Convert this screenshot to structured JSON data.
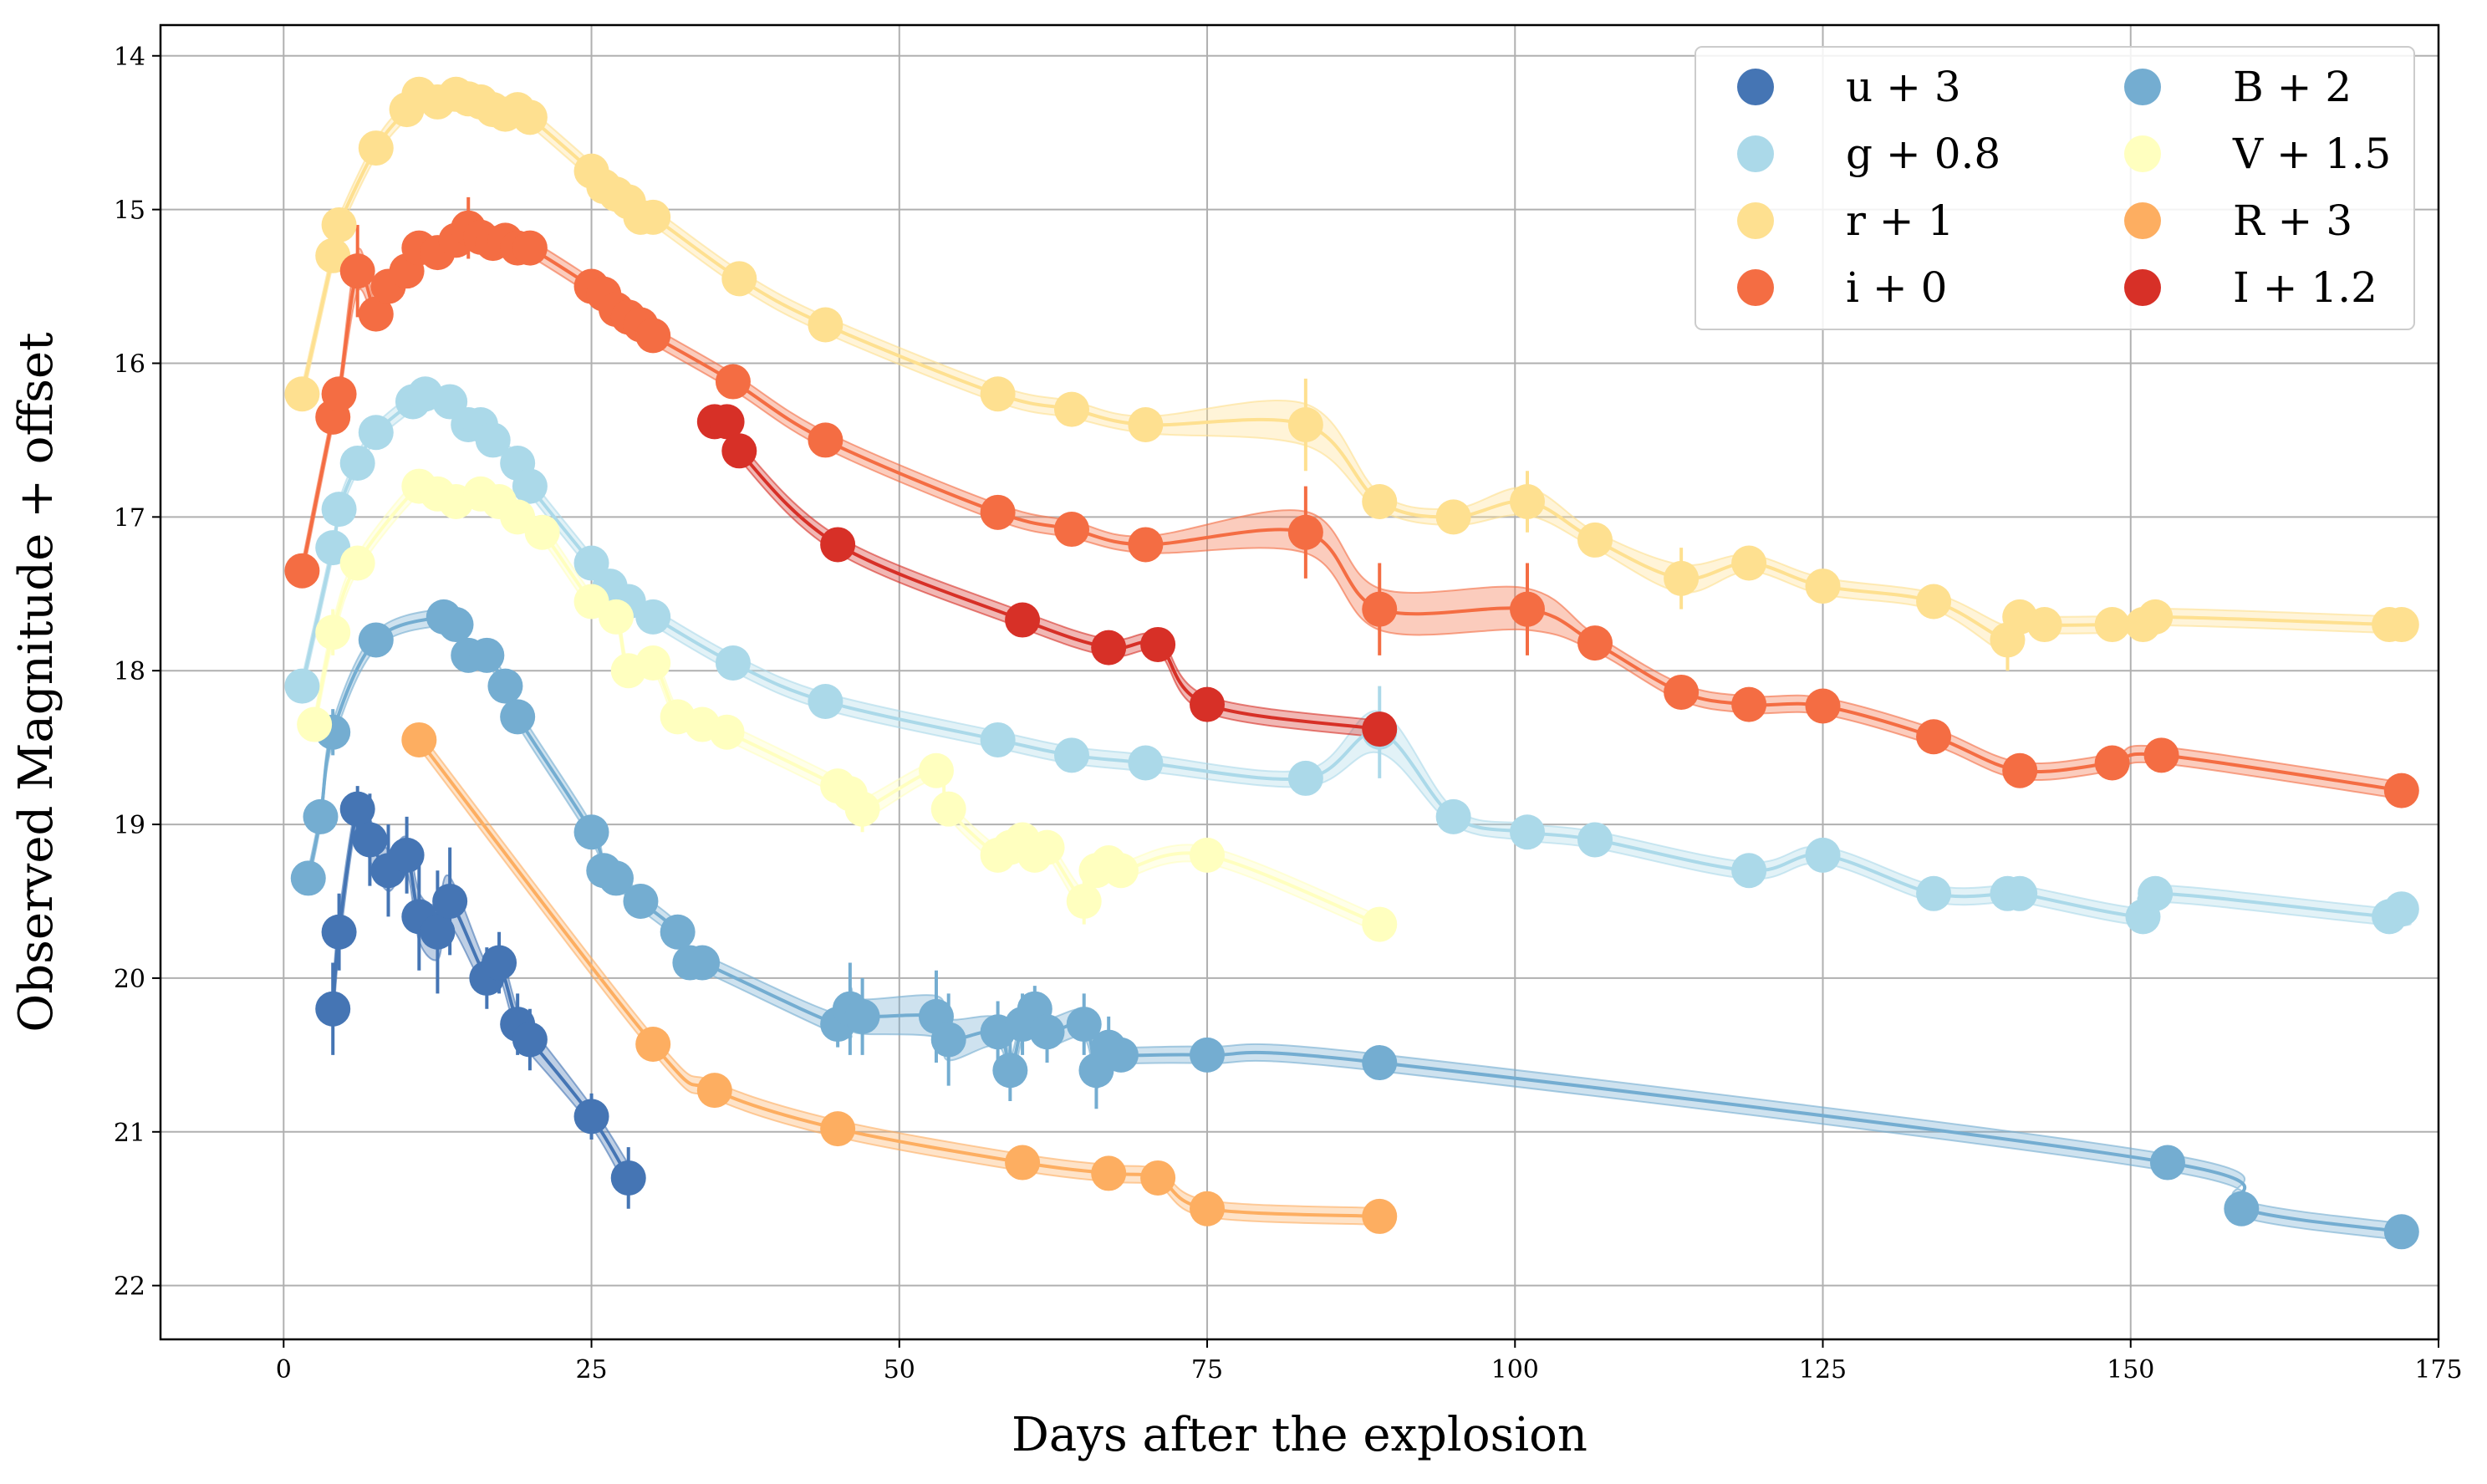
{
  "chart_data": {
    "type": "scatter",
    "title": "",
    "xlabel": "Days after the explosion",
    "ylabel": "Observed Magnitude + offset",
    "xlim": [
      -10,
      175
    ],
    "ylim": [
      22.35,
      13.8
    ],
    "y_inverted": true,
    "grid": true,
    "xticks": [
      "0",
      "25",
      "50",
      "75",
      "100",
      "125",
      "150",
      "175"
    ],
    "yticks": [
      "14",
      "15",
      "16",
      "17",
      "18",
      "19",
      "20",
      "21",
      "22"
    ],
    "legend_position": "top-right",
    "legend_columns": 2,
    "series": [
      {
        "name": "u + 3",
        "color": "#4575b4",
        "x": [
          4,
          4.5,
          6,
          7,
          8.5,
          10,
          11,
          12.5,
          13.5,
          16.5,
          17.5,
          19,
          20,
          25,
          28
        ],
        "y": [
          20.2,
          19.7,
          18.9,
          19.1,
          19.3,
          19.2,
          19.6,
          19.7,
          19.5,
          20.0,
          19.9,
          20.3,
          20.4,
          20.9,
          21.3
        ],
        "err": [
          0.3,
          0.25,
          0.15,
          0.3,
          0.3,
          0.25,
          0.35,
          0.4,
          0.35,
          0.2,
          0.2,
          0.2,
          0.2,
          0.15,
          0.2
        ]
      },
      {
        "name": "B + 2",
        "color": "#74add1",
        "x": [
          2,
          3,
          4,
          7.5,
          13,
          14,
          15,
          16.5,
          18,
          19,
          25,
          26,
          27,
          29,
          32,
          33,
          34,
          45,
          46,
          47,
          53,
          54,
          58,
          59,
          60,
          61,
          62,
          65,
          66,
          67,
          68,
          75,
          89,
          153,
          159,
          172
        ],
        "y": [
          19.35,
          18.95,
          18.4,
          17.8,
          17.65,
          17.7,
          17.9,
          17.9,
          18.1,
          18.3,
          19.05,
          19.3,
          19.35,
          19.5,
          19.7,
          19.9,
          19.9,
          20.3,
          20.2,
          20.25,
          20.25,
          20.4,
          20.35,
          20.6,
          20.3,
          20.2,
          20.35,
          20.3,
          20.6,
          20.45,
          20.5,
          20.5,
          20.55,
          21.2,
          21.5,
          21.65
        ],
        "err": [
          0.1,
          0.1,
          0.15,
          0.1,
          0.1,
          0.1,
          0.1,
          0.1,
          0.1,
          0.1,
          0.1,
          0.1,
          0.1,
          0.1,
          0.1,
          0.1,
          0.1,
          0.15,
          0.3,
          0.25,
          0.3,
          0.3,
          0.2,
          0.2,
          0.2,
          0.15,
          0.2,
          0.2,
          0.25,
          0.2,
          0.1,
          0.1,
          0.1,
          0.1,
          0.1,
          0.1
        ]
      },
      {
        "name": "g + 0.8",
        "color": "#abd9e9",
        "x": [
          1.5,
          4,
          4.5,
          6,
          7.5,
          10.5,
          11.5,
          13.5,
          15,
          16,
          17,
          19,
          20,
          25,
          26.5,
          28,
          30,
          36.5,
          44,
          58,
          64,
          70,
          83,
          89,
          95,
          101,
          106.5,
          119,
          125,
          134,
          140,
          141,
          151,
          152,
          171,
          172
        ],
        "y": [
          18.1,
          17.2,
          16.95,
          16.65,
          16.45,
          16.25,
          16.2,
          16.25,
          16.4,
          16.4,
          16.5,
          16.65,
          16.8,
          17.3,
          17.45,
          17.55,
          17.65,
          17.95,
          18.2,
          18.45,
          18.55,
          18.6,
          18.7,
          18.4,
          18.95,
          19.05,
          19.1,
          19.3,
          19.2,
          19.45,
          19.45,
          19.45,
          19.6,
          19.45,
          19.6,
          19.55
        ],
        "err": [
          0.1,
          0.1,
          0.1,
          0.1,
          0.1,
          0.1,
          0.1,
          0.1,
          0.1,
          0.1,
          0.1,
          0.1,
          0.1,
          0.1,
          0.1,
          0.1,
          0.1,
          0.1,
          0.1,
          0.1,
          0.1,
          0.1,
          0.1,
          0.3,
          0.1,
          0.1,
          0.1,
          0.1,
          0.1,
          0.1,
          0.1,
          0.1,
          0.1,
          0.1,
          0.1,
          0.1
        ]
      },
      {
        "name": "V + 1.5",
        "color": "#ffffbf",
        "x": [
          2.5,
          4,
          6,
          11,
          12.5,
          14,
          16,
          17.5,
          19,
          21,
          25,
          27,
          28,
          30,
          32,
          34,
          36,
          45,
          46,
          47,
          53,
          54,
          58,
          59,
          60,
          61,
          62,
          65,
          66,
          67,
          68,
          75,
          89
        ],
        "y": [
          18.35,
          17.75,
          17.3,
          16.8,
          16.85,
          16.9,
          16.85,
          16.9,
          17.0,
          17.1,
          17.55,
          17.65,
          18.0,
          17.95,
          18.3,
          18.35,
          18.4,
          18.75,
          18.8,
          18.9,
          18.65,
          18.9,
          19.2,
          19.15,
          19.1,
          19.2,
          19.15,
          19.5,
          19.3,
          19.25,
          19.3,
          19.2,
          19.65
        ],
        "err": [
          0.1,
          0.15,
          0.1,
          0.1,
          0.1,
          0.1,
          0.1,
          0.1,
          0.1,
          0.1,
          0.1,
          0.1,
          0.1,
          0.1,
          0.1,
          0.1,
          0.1,
          0.1,
          0.1,
          0.15,
          0.1,
          0.1,
          0.1,
          0.1,
          0.1,
          0.1,
          0.1,
          0.15,
          0.1,
          0.1,
          0.1,
          0.1,
          0.1
        ]
      },
      {
        "name": "r + 1",
        "color": "#fee090",
        "x": [
          1.5,
          4,
          4.5,
          7.5,
          10,
          11,
          12.5,
          14,
          15,
          16,
          17,
          18,
          19,
          20,
          25,
          26,
          27,
          28,
          29,
          30,
          37,
          44,
          58,
          64,
          70,
          83,
          89,
          95,
          101,
          106.5,
          113.5,
          119,
          125,
          134,
          140,
          141,
          143,
          148.5,
          151,
          152,
          171,
          172
        ],
        "y": [
          16.2,
          15.3,
          15.1,
          14.6,
          14.35,
          14.25,
          14.3,
          14.25,
          14.28,
          14.3,
          14.35,
          14.38,
          14.35,
          14.4,
          14.75,
          14.85,
          14.9,
          14.95,
          15.05,
          15.05,
          15.45,
          15.75,
          16.2,
          16.3,
          16.4,
          16.4,
          16.9,
          17.0,
          16.9,
          17.15,
          17.4,
          17.3,
          17.45,
          17.55,
          17.8,
          17.65,
          17.7,
          17.7,
          17.7,
          17.65,
          17.7,
          17.7
        ],
        "err": [
          0.1,
          0.1,
          0.1,
          0.1,
          0.1,
          0.1,
          0.1,
          0.1,
          0.1,
          0.1,
          0.1,
          0.1,
          0.1,
          0.1,
          0.1,
          0.1,
          0.1,
          0.1,
          0.1,
          0.1,
          0.1,
          0.1,
          0.1,
          0.1,
          0.1,
          0.3,
          0.1,
          0.1,
          0.2,
          0.1,
          0.2,
          0.1,
          0.1,
          0.1,
          0.2,
          0.1,
          0.1,
          0.1,
          0.1,
          0.1,
          0.1,
          0.1
        ]
      },
      {
        "name": "R + 3",
        "color": "#fdae61",
        "x": [
          11,
          30,
          35,
          45,
          60,
          67,
          71,
          75,
          89
        ],
        "y": [
          18.45,
          20.43,
          20.73,
          20.98,
          21.2,
          21.27,
          21.3,
          21.5,
          21.55
        ],
        "err": [
          0.1,
          0.1,
          0.1,
          0.1,
          0.1,
          0.1,
          0.1,
          0.1,
          0.1
        ]
      },
      {
        "name": "i + 0",
        "color": "#f46d43",
        "x": [
          1.5,
          4,
          4.5,
          6,
          7.5,
          8.5,
          10,
          11,
          12.5,
          14,
          15,
          16,
          17,
          18,
          19,
          20,
          25,
          26,
          27,
          28,
          29,
          30,
          36.5,
          44,
          58,
          64,
          70,
          83,
          89,
          101,
          106.5,
          113.5,
          119,
          125,
          134,
          141,
          148.5,
          152.5,
          172
        ],
        "y": [
          17.35,
          16.35,
          16.2,
          15.4,
          15.68,
          15.5,
          15.4,
          15.25,
          15.28,
          15.2,
          15.12,
          15.18,
          15.22,
          15.2,
          15.25,
          15.25,
          15.5,
          15.55,
          15.65,
          15.7,
          15.75,
          15.82,
          16.12,
          16.5,
          16.97,
          17.08,
          17.18,
          17.1,
          17.6,
          17.6,
          17.82,
          18.14,
          18.22,
          18.23,
          18.43,
          18.65,
          18.6,
          18.55,
          18.78
        ],
        "err": [
          0.1,
          0.1,
          0.1,
          0.3,
          0.1,
          0.1,
          0.1,
          0.1,
          0.1,
          0.1,
          0.2,
          0.1,
          0.1,
          0.1,
          0.1,
          0.1,
          0.1,
          0.1,
          0.1,
          0.1,
          0.1,
          0.1,
          0.1,
          0.1,
          0.1,
          0.1,
          0.1,
          0.3,
          0.3,
          0.3,
          0.1,
          0.1,
          0.1,
          0.1,
          0.1,
          0.1,
          0.1,
          0.1,
          0.1
        ]
      },
      {
        "name": "I + 1.2",
        "color": "#d73027",
        "x": [
          35,
          36,
          37,
          45,
          60,
          67,
          71,
          75,
          89
        ],
        "y": [
          16.38,
          16.38,
          16.57,
          17.18,
          17.67,
          17.85,
          17.83,
          18.22,
          18.38
        ],
        "err": [
          0.1,
          0.1,
          0.1,
          0.1,
          0.1,
          0.1,
          0.1,
          0.1,
          0.1
        ]
      }
    ]
  }
}
